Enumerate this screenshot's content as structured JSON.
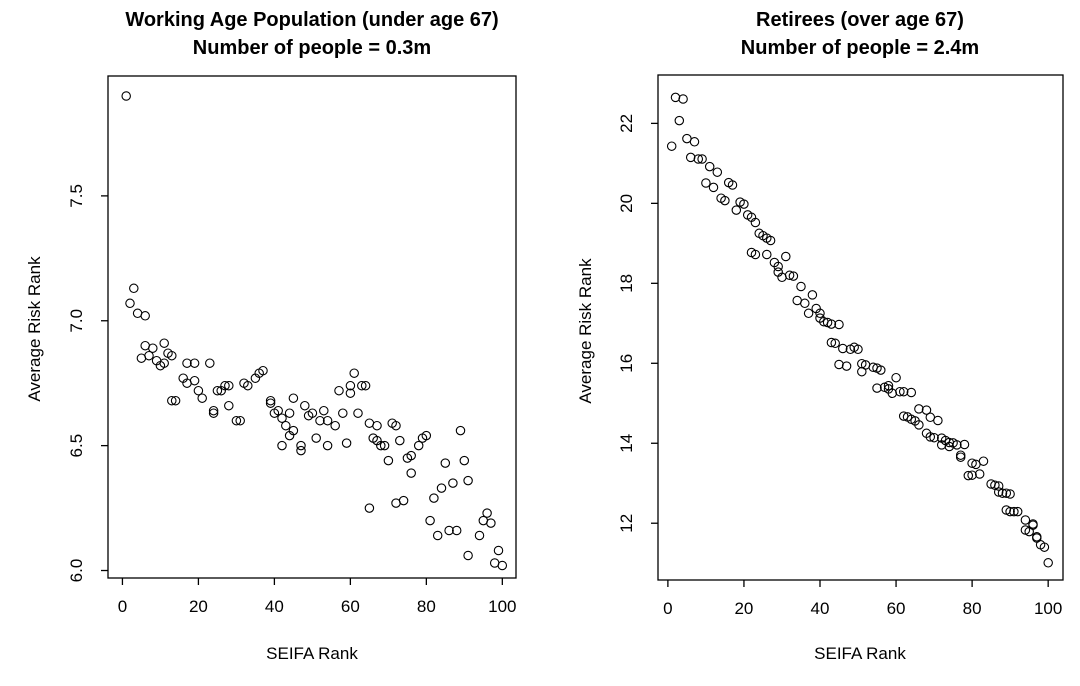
{
  "figure": {
    "background": "#ffffff",
    "text_color": "#000000",
    "marker_color": "#000000"
  },
  "chart_data": [
    {
      "type": "scatter",
      "title": "Working Age Population (under age 67)",
      "subtitle": "Number of people = 0.3m",
      "xlabel": "SEIFA Rank",
      "ylabel": "Average Risk Rank",
      "xlim": [
        -3.8,
        103.6
      ],
      "ylim": [
        5.97,
        7.98
      ],
      "xticks": [
        0,
        20,
        40,
        60,
        80,
        100
      ],
      "xtick_labels": [
        "0",
        "20",
        "40",
        "60",
        "80",
        "100"
      ],
      "yticks": [
        6.0,
        6.5,
        7.0,
        7.5
      ],
      "ytick_labels": [
        "6.0",
        "6.5",
        "7.0",
        "7.5"
      ],
      "grid": false,
      "legend": null,
      "marker": "open-circle",
      "points": [
        [
          1,
          7.9
        ],
        [
          2,
          7.07
        ],
        [
          3,
          7.13
        ],
        [
          4,
          7.03
        ],
        [
          5,
          6.85
        ],
        [
          6,
          7.02
        ],
        [
          6,
          6.9
        ],
        [
          7,
          6.86
        ],
        [
          8,
          6.89
        ],
        [
          9,
          6.84
        ],
        [
          10,
          6.82
        ],
        [
          11,
          6.91
        ],
        [
          11,
          6.83
        ],
        [
          12,
          6.87
        ],
        [
          13,
          6.86
        ],
        [
          13,
          6.68
        ],
        [
          14,
          6.68
        ],
        [
          16,
          6.77
        ],
        [
          17,
          6.83
        ],
        [
          17,
          6.75
        ],
        [
          19,
          6.83
        ],
        [
          19,
          6.76
        ],
        [
          20,
          6.72
        ],
        [
          21,
          6.69
        ],
        [
          23,
          6.83
        ],
        [
          24,
          6.64
        ],
        [
          24,
          6.63
        ],
        [
          25,
          6.72
        ],
        [
          26,
          6.72
        ],
        [
          27,
          6.74
        ],
        [
          28,
          6.74
        ],
        [
          28,
          6.66
        ],
        [
          30,
          6.6
        ],
        [
          31,
          6.6
        ],
        [
          32,
          6.75
        ],
        [
          33,
          6.74
        ],
        [
          35,
          6.77
        ],
        [
          36,
          6.79
        ],
        [
          37,
          6.8
        ],
        [
          39,
          6.68
        ],
        [
          39,
          6.67
        ],
        [
          40,
          6.63
        ],
        [
          41,
          6.64
        ],
        [
          42,
          6.61
        ],
        [
          42,
          6.5
        ],
        [
          43,
          6.58
        ],
        [
          44,
          6.63
        ],
        [
          44,
          6.54
        ],
        [
          45,
          6.69
        ],
        [
          45,
          6.56
        ],
        [
          47,
          6.5
        ],
        [
          47,
          6.48
        ],
        [
          48,
          6.66
        ],
        [
          49,
          6.62
        ],
        [
          50,
          6.63
        ],
        [
          51,
          6.53
        ],
        [
          52,
          6.6
        ],
        [
          53,
          6.64
        ],
        [
          54,
          6.6
        ],
        [
          54,
          6.5
        ],
        [
          56,
          6.58
        ],
        [
          57,
          6.72
        ],
        [
          58,
          6.63
        ],
        [
          59,
          6.51
        ],
        [
          60,
          6.74
        ],
        [
          60,
          6.71
        ],
        [
          61,
          6.79
        ],
        [
          62,
          6.63
        ],
        [
          63,
          6.74
        ],
        [
          64,
          6.74
        ],
        [
          65,
          6.25
        ],
        [
          65,
          6.59
        ],
        [
          66,
          6.53
        ],
        [
          67,
          6.58
        ],
        [
          67,
          6.52
        ],
        [
          68,
          6.5
        ],
        [
          69,
          6.5
        ],
        [
          70,
          6.44
        ],
        [
          71,
          6.59
        ],
        [
          72,
          6.58
        ],
        [
          72,
          6.27
        ],
        [
          73,
          6.52
        ],
        [
          74,
          6.28
        ],
        [
          75,
          6.45
        ],
        [
          76,
          6.46
        ],
        [
          76,
          6.39
        ],
        [
          78,
          6.5
        ],
        [
          79,
          6.53
        ],
        [
          80,
          6.54
        ],
        [
          81,
          6.2
        ],
        [
          82,
          6.29
        ],
        [
          83,
          6.14
        ],
        [
          84,
          6.33
        ],
        [
          85,
          6.43
        ],
        [
          86,
          6.16
        ],
        [
          87,
          6.35
        ],
        [
          88,
          6.16
        ],
        [
          89,
          6.56
        ],
        [
          90,
          6.44
        ],
        [
          91,
          6.06
        ],
        [
          91,
          6.36
        ],
        [
          94,
          6.14
        ],
        [
          95,
          6.2
        ],
        [
          96,
          6.23
        ],
        [
          97,
          6.19
        ],
        [
          98,
          6.03
        ],
        [
          99,
          6.08
        ],
        [
          100,
          6.02
        ]
      ]
    },
    {
      "type": "scatter",
      "title": "Retirees (over age 67)",
      "subtitle": "Number of people = 2.4m",
      "xlabel": "SEIFA Rank",
      "ylabel": "Average Risk Rank",
      "xlim": [
        -2.6,
        103.9
      ],
      "ylim": [
        10.58,
        23.21
      ],
      "xticks": [
        0,
        20,
        40,
        60,
        80,
        100
      ],
      "xtick_labels": [
        "0",
        "20",
        "40",
        "60",
        "80",
        "100"
      ],
      "yticks": [
        12,
        14,
        16,
        18,
        20,
        22
      ],
      "ytick_labels": [
        "12",
        "14",
        "16",
        "18",
        "20",
        "22"
      ],
      "grid": false,
      "legend": null,
      "marker": "open-circle",
      "points": [
        [
          1,
          21.43
        ],
        [
          2,
          22.65
        ],
        [
          3,
          22.07
        ],
        [
          4,
          22.61
        ],
        [
          5,
          21.62
        ],
        [
          6,
          21.15
        ],
        [
          7,
          21.54
        ],
        [
          8,
          21.11
        ],
        [
          9,
          21.11
        ],
        [
          10,
          20.51
        ],
        [
          11,
          20.92
        ],
        [
          12,
          20.4
        ],
        [
          13,
          20.78
        ],
        [
          14,
          20.13
        ],
        [
          15,
          20.07
        ],
        [
          16,
          20.52
        ],
        [
          17,
          20.46
        ],
        [
          18,
          19.83
        ],
        [
          19,
          20.03
        ],
        [
          20,
          19.98
        ],
        [
          21,
          19.71
        ],
        [
          22,
          19.65
        ],
        [
          22,
          18.77
        ],
        [
          23,
          19.52
        ],
        [
          23,
          18.72
        ],
        [
          24,
          19.25
        ],
        [
          25,
          19.19
        ],
        [
          26,
          19.13
        ],
        [
          26,
          18.72
        ],
        [
          27,
          19.07
        ],
        [
          28,
          18.52
        ],
        [
          29,
          18.42
        ],
        [
          29,
          18.28
        ],
        [
          30,
          18.15
        ],
        [
          31,
          18.67
        ],
        [
          32,
          18.2
        ],
        [
          33,
          18.18
        ],
        [
          34,
          17.57
        ],
        [
          35,
          17.92
        ],
        [
          36,
          17.5
        ],
        [
          37,
          17.25
        ],
        [
          38,
          17.71
        ],
        [
          39,
          17.37
        ],
        [
          40,
          17.25
        ],
        [
          40,
          17.13
        ],
        [
          41,
          17.04
        ],
        [
          42,
          17.02
        ],
        [
          43,
          16.98
        ],
        [
          43,
          16.52
        ],
        [
          44,
          16.5
        ],
        [
          45,
          16.97
        ],
        [
          45,
          15.97
        ],
        [
          46,
          16.37
        ],
        [
          47,
          15.93
        ],
        [
          48,
          16.35
        ],
        [
          49,
          16.4
        ],
        [
          50,
          16.35
        ],
        [
          51,
          15.99
        ],
        [
          51,
          15.79
        ],
        [
          52,
          15.96
        ],
        [
          54,
          15.9
        ],
        [
          55,
          15.88
        ],
        [
          55,
          15.38
        ],
        [
          56,
          15.83
        ],
        [
          57,
          15.4
        ],
        [
          58,
          15.44
        ],
        [
          58,
          15.36
        ],
        [
          59,
          15.25
        ],
        [
          60,
          15.64
        ],
        [
          61,
          15.29
        ],
        [
          62,
          15.29
        ],
        [
          62,
          14.68
        ],
        [
          63,
          14.66
        ],
        [
          64,
          15.27
        ],
        [
          64,
          14.6
        ],
        [
          65,
          14.56
        ],
        [
          66,
          14.86
        ],
        [
          66,
          14.46
        ],
        [
          68,
          14.83
        ],
        [
          68,
          14.25
        ],
        [
          69,
          14.65
        ],
        [
          69,
          14.16
        ],
        [
          70,
          14.14
        ],
        [
          71,
          14.57
        ],
        [
          72,
          14.13
        ],
        [
          72,
          13.96
        ],
        [
          73,
          14.07
        ],
        [
          74,
          14.02
        ],
        [
          74,
          13.92
        ],
        [
          75,
          14.01
        ],
        [
          76,
          13.96
        ],
        [
          77,
          13.7
        ],
        [
          77,
          13.65
        ],
        [
          78,
          13.97
        ],
        [
          79,
          13.19
        ],
        [
          80,
          13.5
        ],
        [
          80,
          13.2
        ],
        [
          81,
          13.47
        ],
        [
          82,
          13.23
        ],
        [
          83,
          13.55
        ],
        [
          85,
          12.98
        ],
        [
          86,
          12.95
        ],
        [
          87,
          12.93
        ],
        [
          87,
          12.78
        ],
        [
          88,
          12.75
        ],
        [
          89,
          12.75
        ],
        [
          89,
          12.33
        ],
        [
          90,
          12.73
        ],
        [
          90,
          12.29
        ],
        [
          91,
          12.29
        ],
        [
          92,
          12.29
        ],
        [
          94,
          12.08
        ],
        [
          94,
          11.83
        ],
        [
          95,
          11.79
        ],
        [
          96,
          11.98
        ],
        [
          96,
          11.95
        ],
        [
          97,
          11.66
        ],
        [
          97,
          11.63
        ],
        [
          98,
          11.46
        ],
        [
          99,
          11.4
        ],
        [
          100,
          11.01
        ]
      ]
    }
  ]
}
